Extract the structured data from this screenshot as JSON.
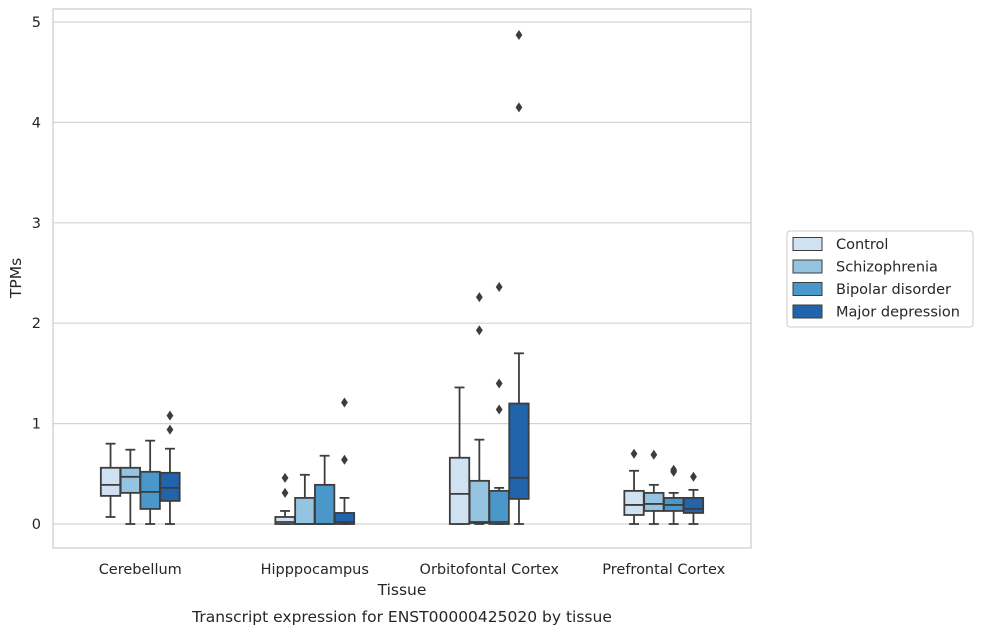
{
  "caption": "Transcript expression for ENST00000425020 by tissue",
  "chart_data": {
    "type": "box",
    "xlabel": "Tissue",
    "ylabel": "TPMs",
    "ylim": [
      -0.24,
      5.12
    ],
    "yticks": [
      0,
      1,
      2,
      3,
      4,
      5
    ],
    "grid": true,
    "legend_position": "right",
    "categories": [
      "Cerebellum",
      "Hipppocampus",
      "Orbitofontal Cortex",
      "Prefrontal Cortex"
    ],
    "series": [
      {
        "name": "Control",
        "color": "#d0e1f2",
        "boxes": [
          {
            "whislo": 0.07,
            "q1": 0.28,
            "med": 0.39,
            "q3": 0.56,
            "whishi": 0.8,
            "fliers": []
          },
          {
            "whislo": 0.0,
            "q1": 0.0,
            "med": 0.02,
            "q3": 0.07,
            "whishi": 0.13,
            "fliers": [
              0.31,
              0.46
            ]
          },
          {
            "whislo": 0.0,
            "q1": 0.0,
            "med": 0.3,
            "q3": 0.66,
            "whishi": 1.36,
            "fliers": []
          },
          {
            "whislo": 0.0,
            "q1": 0.09,
            "med": 0.19,
            "q3": 0.33,
            "whishi": 0.53,
            "fliers": [
              0.7
            ]
          }
        ]
      },
      {
        "name": "Schizophrenia",
        "color": "#94c4df",
        "boxes": [
          {
            "whislo": 0.0,
            "q1": 0.31,
            "med": 0.47,
            "q3": 0.56,
            "whishi": 0.74,
            "fliers": []
          },
          {
            "whislo": 0.0,
            "q1": 0.0,
            "med": 0.0,
            "q3": 0.26,
            "whishi": 0.49,
            "fliers": []
          },
          {
            "whislo": 0.0,
            "q1": 0.01,
            "med": 0.02,
            "q3": 0.43,
            "whishi": 0.84,
            "fliers": [
              1.93,
              2.26
            ]
          },
          {
            "whislo": 0.0,
            "q1": 0.13,
            "med": 0.2,
            "q3": 0.31,
            "whishi": 0.39,
            "fliers": [
              0.69
            ]
          }
        ]
      },
      {
        "name": "Bipolar disorder",
        "color": "#4a98c9",
        "boxes": [
          {
            "whislo": 0.0,
            "q1": 0.15,
            "med": 0.32,
            "q3": 0.52,
            "whishi": 0.83,
            "fliers": []
          },
          {
            "whislo": 0.0,
            "q1": 0.0,
            "med": 0.0,
            "q3": 0.39,
            "whishi": 0.68,
            "fliers": []
          },
          {
            "whislo": 0.0,
            "q1": 0.0,
            "med": 0.02,
            "q3": 0.33,
            "whishi": 0.36,
            "fliers": [
              1.14,
              1.4,
              2.36
            ]
          },
          {
            "whislo": 0.0,
            "q1": 0.13,
            "med": 0.19,
            "q3": 0.26,
            "whishi": 0.31,
            "fliers": [
              0.52,
              0.54
            ]
          }
        ]
      },
      {
        "name": "Major depression",
        "color": "#2164ab",
        "boxes": [
          {
            "whislo": 0.0,
            "q1": 0.23,
            "med": 0.36,
            "q3": 0.51,
            "whishi": 0.75,
            "fliers": [
              0.94,
              1.08
            ]
          },
          {
            "whislo": 0.0,
            "q1": 0.0,
            "med": 0.02,
            "q3": 0.11,
            "whishi": 0.26,
            "fliers": [
              0.64,
              1.21
            ]
          },
          {
            "whislo": 0.0,
            "q1": 0.25,
            "med": 0.46,
            "q3": 1.2,
            "whishi": 1.7,
            "fliers": [
              4.15,
              4.87
            ]
          },
          {
            "whislo": 0.0,
            "q1": 0.11,
            "med": 0.15,
            "q3": 0.26,
            "whishi": 0.34,
            "fliers": [
              0.47
            ]
          }
        ]
      }
    ]
  }
}
